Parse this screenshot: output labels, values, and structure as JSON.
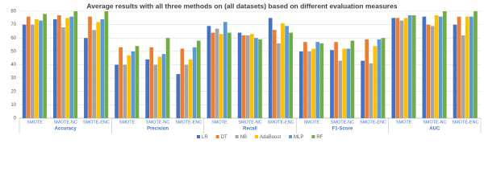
{
  "chart_data": {
    "type": "bar",
    "title": "Average results with all three methods on (all datasets) based on different evaluation measures",
    "categories": [
      "SMOTE",
      "SMOTE-NC",
      "SMOTE-ENC",
      "SMOTE",
      "SMOTE-NC",
      "SMOTE-ENC",
      "SMOTE",
      "SMOTE-NC",
      "SMOTE-ENC",
      "SMOTE",
      "SMOTE-NC",
      "SMOTE-ENC",
      "SMOTE",
      "SMOTE-NC",
      "SMOTE-ENC"
    ],
    "groups": [
      "Accuracy",
      "Precision",
      "Recall",
      "F1-Score",
      "AUC"
    ],
    "series": [
      {
        "name": "LR",
        "color": "#4472c4",
        "values": [
          70,
          74,
          60,
          40,
          44,
          33,
          69,
          64,
          75,
          50,
          51,
          43,
          75,
          76,
          70
        ]
      },
      {
        "name": "DT",
        "color": "#ed7d31",
        "values": [
          76,
          77,
          76,
          53,
          53,
          52,
          64,
          62,
          66,
          57,
          57,
          59,
          75,
          70,
          76
        ]
      },
      {
        "name": "NB",
        "color": "#a5a5a5",
        "values": [
          70,
          68,
          66,
          40,
          40,
          40,
          67,
          62,
          56,
          50,
          43,
          41,
          73,
          69,
          62
        ]
      },
      {
        "name": "AdaBoost",
        "color": "#ffc000",
        "values": [
          74,
          75,
          72,
          47,
          46,
          44,
          63,
          63,
          71,
          52,
          52,
          54,
          75,
          77,
          76
        ]
      },
      {
        "name": "MLP",
        "color": "#5b9bd5",
        "values": [
          73,
          76,
          74,
          50,
          48,
          53,
          72,
          60,
          69,
          57,
          52,
          59,
          77,
          76,
          76
        ]
      },
      {
        "name": "RF",
        "color": "#70ad47",
        "values": [
          78,
          80,
          80,
          54,
          60,
          58,
          64,
          59,
          64,
          56,
          58,
          60,
          77,
          80,
          80
        ]
      }
    ],
    "ylim": [
      0,
      80
    ],
    "yticks": [
      0,
      10,
      20,
      30,
      40,
      50,
      60,
      70,
      80
    ],
    "grid": true
  }
}
